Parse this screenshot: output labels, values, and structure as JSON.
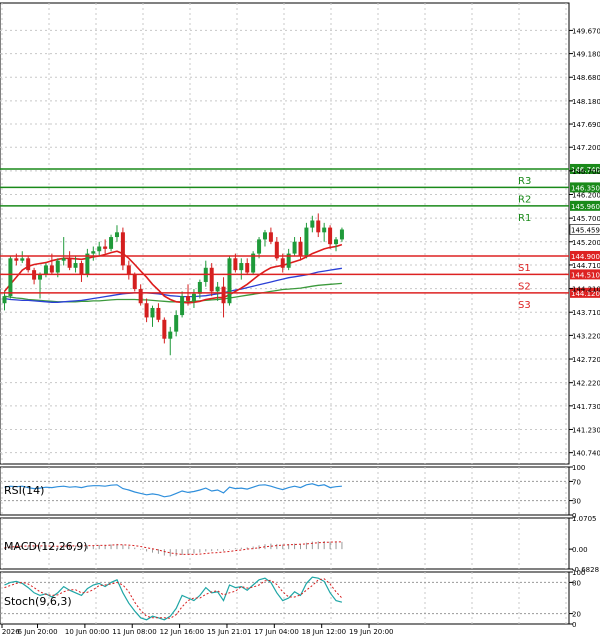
{
  "chart_data": {
    "type": "candlestick",
    "symbol": "USDJPY",
    "main": {
      "ylim": [
        140.5,
        150.25
      ],
      "y_ticks": [
        "149.670",
        "149.180",
        "148.680",
        "148.180",
        "147.690",
        "147.200",
        "146.700",
        "146.200",
        "145.700",
        "145.200",
        "144.710",
        "144.210",
        "143.710",
        "143.220",
        "142.720",
        "142.220",
        "141.730",
        "141.230",
        "140.740"
      ],
      "levels": [
        {
          "name": "R3",
          "value": 146.74,
          "label": "146.740",
          "color": "#1a8a1a"
        },
        {
          "name": "R2",
          "value": 146.35,
          "label": "146.350",
          "color": "#1a8a1a"
        },
        {
          "name": "R1",
          "value": 145.96,
          "label": "145.960",
          "color": "#1a8a1a"
        },
        {
          "name": "S1",
          "value": 144.9,
          "label": "144.900",
          "color": "#dd2222"
        },
        {
          "name": "S2",
          "value": 144.51,
          "label": "144.510",
          "color": "#dd2222"
        },
        {
          "name": "S3",
          "value": 144.12,
          "label": "144.120",
          "color": "#dd2222"
        }
      ],
      "last_price": {
        "value": 145.459,
        "label": "145.459"
      },
      "candles": [
        [
          143.9,
          144.15,
          143.75,
          144.05
        ],
        [
          144.05,
          144.9,
          144.0,
          144.85
        ],
        [
          144.85,
          144.95,
          144.7,
          144.8
        ],
        [
          144.8,
          145.0,
          144.75,
          144.85
        ],
        [
          144.85,
          144.9,
          144.55,
          144.6
        ],
        [
          144.6,
          144.65,
          144.3,
          144.4
        ],
        [
          144.4,
          144.55,
          144.0,
          144.5
        ],
        [
          144.5,
          144.75,
          144.45,
          144.7
        ],
        [
          144.7,
          144.95,
          144.5,
          144.55
        ],
        [
          144.55,
          144.85,
          144.45,
          144.8
        ],
        [
          144.8,
          145.3,
          144.7,
          144.85
        ],
        [
          144.85,
          145.0,
          144.6,
          144.65
        ],
        [
          144.65,
          144.9,
          144.55,
          144.75
        ],
        [
          144.75,
          144.8,
          144.35,
          144.5
        ],
        [
          144.5,
          145.05,
          144.45,
          144.95
        ],
        [
          144.95,
          145.1,
          144.8,
          145.0
        ],
        [
          145.0,
          145.2,
          144.9,
          145.1
        ],
        [
          145.1,
          145.25,
          144.95,
          145.05
        ],
        [
          145.05,
          145.35,
          145.0,
          145.3
        ],
        [
          145.3,
          145.55,
          145.2,
          145.4
        ],
        [
          145.4,
          145.5,
          144.6,
          144.7
        ],
        [
          144.7,
          144.8,
          144.4,
          144.5
        ],
        [
          144.5,
          144.55,
          144.15,
          144.2
        ],
        [
          144.2,
          144.3,
          143.85,
          143.9
        ],
        [
          143.9,
          144.0,
          143.5,
          143.6
        ],
        [
          143.6,
          143.85,
          143.4,
          143.8
        ],
        [
          143.8,
          143.9,
          143.5,
          143.55
        ],
        [
          143.55,
          143.6,
          143.05,
          143.15
        ],
        [
          143.15,
          143.4,
          142.8,
          143.3
        ],
        [
          143.3,
          143.75,
          143.2,
          143.65
        ],
        [
          143.65,
          144.15,
          143.6,
          144.05
        ],
        [
          144.05,
          144.3,
          143.85,
          143.95
        ],
        [
          143.95,
          144.2,
          143.8,
          144.1
        ],
        [
          144.1,
          144.4,
          144.0,
          144.35
        ],
        [
          144.35,
          144.8,
          144.25,
          144.65
        ],
        [
          144.65,
          144.75,
          144.05,
          144.15
        ],
        [
          144.15,
          144.35,
          143.95,
          144.25
        ],
        [
          144.25,
          144.45,
          143.6,
          143.9
        ],
        [
          143.9,
          144.9,
          143.85,
          144.85
        ],
        [
          144.85,
          144.95,
          144.55,
          144.6
        ],
        [
          144.6,
          144.85,
          144.4,
          144.75
        ],
        [
          144.75,
          144.85,
          144.5,
          144.55
        ],
        [
          144.55,
          145.0,
          144.5,
          144.95
        ],
        [
          144.95,
          145.3,
          144.85,
          145.25
        ],
        [
          145.25,
          145.45,
          145.1,
          145.4
        ],
        [
          145.4,
          145.5,
          145.15,
          145.2
        ],
        [
          145.2,
          145.3,
          144.8,
          144.85
        ],
        [
          144.85,
          144.95,
          144.55,
          144.65
        ],
        [
          144.65,
          145.05,
          144.6,
          144.95
        ],
        [
          144.95,
          145.3,
          144.9,
          145.2
        ],
        [
          145.2,
          145.3,
          144.8,
          144.9
        ],
        [
          144.9,
          145.6,
          144.85,
          145.5
        ],
        [
          145.5,
          145.75,
          145.4,
          145.65
        ],
        [
          145.65,
          145.8,
          145.3,
          145.4
        ],
        [
          145.4,
          145.6,
          145.2,
          145.5
        ],
        [
          145.5,
          145.55,
          145.05,
          145.15
        ],
        [
          145.15,
          145.3,
          145.0,
          145.25
        ],
        [
          145.25,
          145.5,
          145.2,
          145.46
        ]
      ],
      "sma_red": [
        144.15,
        144.3,
        144.45,
        144.6,
        144.68,
        144.72,
        144.74,
        144.76,
        144.8,
        144.83,
        144.85,
        144.85,
        144.84,
        144.83,
        144.85,
        144.88,
        144.9,
        144.93,
        144.97,
        145.0,
        144.95,
        144.85,
        144.72,
        144.58,
        144.45,
        144.3,
        144.18,
        144.05,
        143.98,
        143.93,
        143.92,
        143.91,
        143.92,
        143.94,
        143.98,
        144.0,
        144.02,
        144.02,
        144.08,
        144.15,
        144.22,
        144.3,
        144.4,
        144.5,
        144.58,
        144.65,
        144.68,
        144.7,
        144.74,
        144.78,
        144.82,
        144.88,
        144.95,
        145.0,
        145.05,
        145.08,
        145.1,
        145.14
      ],
      "sma_blue": [
        144.0,
        143.98,
        143.97,
        143.96,
        143.96,
        143.95,
        143.94,
        143.93,
        143.92,
        143.92,
        143.93,
        143.94,
        143.95,
        143.96,
        143.98,
        144.0,
        144.02,
        144.04,
        144.06,
        144.08,
        144.1,
        144.11,
        144.12,
        144.12,
        144.12,
        144.11,
        144.1,
        144.08,
        144.06,
        144.05,
        144.04,
        144.04,
        144.04,
        144.05,
        144.06,
        144.08,
        144.1,
        144.12,
        144.15,
        144.18,
        144.2,
        144.23,
        144.26,
        144.29,
        144.32,
        144.35,
        144.38,
        144.41,
        144.44,
        144.46,
        144.48,
        144.5,
        144.53,
        144.56,
        144.58,
        144.6,
        144.62,
        144.64
      ],
      "sma_green": [
        144.05,
        144.03,
        144.01,
        144.0,
        143.98,
        143.97,
        143.96,
        143.95,
        143.94,
        143.93,
        143.93,
        143.93,
        143.93,
        143.94,
        143.94,
        143.95,
        143.95,
        143.96,
        143.97,
        143.98,
        143.98,
        143.98,
        143.98,
        143.97,
        143.97,
        143.96,
        143.95,
        143.94,
        143.93,
        143.93,
        143.93,
        143.93,
        143.94,
        143.95,
        143.96,
        143.97,
        143.98,
        143.99,
        144.01,
        144.03,
        144.05,
        144.07,
        144.09,
        144.11,
        144.13,
        144.15,
        144.17,
        144.19,
        144.2,
        144.21,
        144.22,
        144.24,
        144.26,
        144.28,
        144.29,
        144.3,
        144.31,
        144.32
      ]
    },
    "rsi": {
      "label": "RSI(14)",
      "ylim": [
        0,
        100
      ],
      "y_ticks": [
        "100",
        "70",
        "30",
        "0"
      ],
      "levels": [
        70,
        30
      ],
      "values": [
        58,
        60,
        59,
        60,
        57,
        55,
        56,
        58,
        57,
        59,
        60,
        58,
        59,
        57,
        60,
        61,
        61,
        60,
        62,
        63,
        55,
        52,
        48,
        45,
        42,
        44,
        42,
        38,
        40,
        45,
        50,
        47,
        49,
        52,
        56,
        50,
        52,
        46,
        58,
        55,
        56,
        54,
        58,
        62,
        63,
        60,
        56,
        53,
        57,
        60,
        57,
        63,
        65,
        61,
        63,
        57,
        59,
        60
      ]
    },
    "macd": {
      "label": "MACD(12,26,9)",
      "ylim": [
        -0.6828,
        1.0705
      ],
      "y_ticks": [
        "1.0705",
        "0.00",
        "-0.6828"
      ],
      "histogram": [
        0.05,
        0.1,
        0.12,
        0.13,
        0.12,
        0.11,
        0.1,
        0.1,
        0.09,
        0.1,
        0.12,
        0.12,
        0.12,
        0.11,
        0.12,
        0.13,
        0.14,
        0.15,
        0.16,
        0.18,
        0.15,
        0.1,
        0.05,
        -0.02,
        -0.08,
        -0.12,
        -0.16,
        -0.22,
        -0.25,
        -0.24,
        -0.2,
        -0.18,
        -0.15,
        -0.12,
        -0.08,
        -0.07,
        -0.05,
        -0.06,
        0.0,
        0.03,
        0.05,
        0.06,
        0.09,
        0.13,
        0.17,
        0.19,
        0.18,
        0.16,
        0.17,
        0.19,
        0.18,
        0.22,
        0.26,
        0.27,
        0.28,
        0.26,
        0.25,
        0.25
      ],
      "signal": [
        0.05,
        0.07,
        0.09,
        0.1,
        0.11,
        0.11,
        0.11,
        0.11,
        0.1,
        0.1,
        0.1,
        0.11,
        0.11,
        0.11,
        0.12,
        0.12,
        0.13,
        0.13,
        0.14,
        0.15,
        0.15,
        0.14,
        0.12,
        0.09,
        0.05,
        0.01,
        -0.03,
        -0.08,
        -0.13,
        -0.16,
        -0.18,
        -0.18,
        -0.18,
        -0.17,
        -0.15,
        -0.13,
        -0.12,
        -0.1,
        -0.08,
        -0.05,
        -0.03,
        0.0,
        0.02,
        0.05,
        0.08,
        0.1,
        0.12,
        0.14,
        0.15,
        0.16,
        0.17,
        0.18,
        0.2,
        0.22,
        0.23,
        0.24,
        0.25,
        0.25
      ]
    },
    "stoch": {
      "label": "Stoch(9,6,3)",
      "ylim": [
        0,
        100
      ],
      "y_ticks": [
        "100",
        "80",
        "20",
        "0"
      ],
      "levels": [
        80,
        20
      ],
      "k": [
        75,
        80,
        82,
        78,
        70,
        60,
        55,
        58,
        52,
        60,
        72,
        65,
        60,
        55,
        68,
        75,
        78,
        72,
        80,
        85,
        60,
        40,
        25,
        12,
        8,
        15,
        12,
        8,
        15,
        30,
        55,
        50,
        45,
        55,
        70,
        60,
        62,
        45,
        75,
        70,
        72,
        65,
        75,
        85,
        88,
        80,
        60,
        45,
        50,
        62,
        55,
        78,
        90,
        88,
        82,
        60,
        45,
        42
      ],
      "d": [
        70,
        74,
        78,
        80,
        77,
        70,
        62,
        57,
        55,
        56,
        62,
        66,
        66,
        60,
        61,
        66,
        74,
        75,
        77,
        80,
        75,
        62,
        42,
        26,
        15,
        12,
        12,
        12,
        11,
        18,
        33,
        45,
        50,
        50,
        57,
        62,
        64,
        56,
        60,
        63,
        72,
        69,
        71,
        75,
        83,
        84,
        76,
        62,
        52,
        52,
        56,
        65,
        74,
        85,
        87,
        77,
        62,
        50
      ]
    },
    "x_ticks": [
      {
        "label": "2 Jun 2026",
        "candle": 0
      },
      {
        "label": "6 Jun 20:00",
        "candle": 6
      },
      {
        "label": "10 Jun 00:00",
        "candle": 14
      },
      {
        "label": "11 Jun 08:00",
        "candle": 22
      },
      {
        "label": "12 Jun 16:00",
        "candle": 30
      },
      {
        "label": "15 Jun 21:01",
        "candle": 38
      },
      {
        "label": "17 Jun 04:00",
        "candle": 46
      },
      {
        "label": "18 Jun 12:00",
        "candle": 54
      },
      {
        "label": "19 Jun 20:00",
        "candle": 62
      }
    ]
  }
}
